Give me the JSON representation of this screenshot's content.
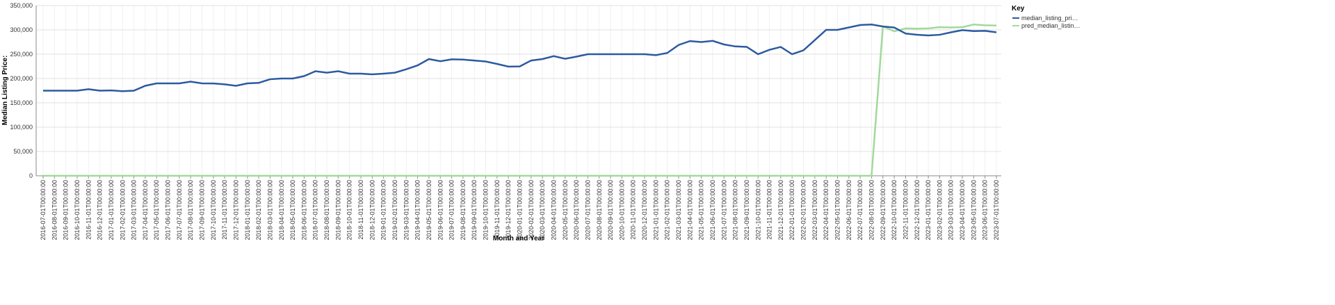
{
  "chart_data": {
    "type": "line",
    "x_label": "Month and Year",
    "y_label": "Median Listing Price:",
    "legend_title": "Key",
    "legend_position": "right",
    "grid": true,
    "categories": [
      "2016-07-01T00:00:00",
      "2016-08-01T00:00:00",
      "2016-09-01T00:00:00",
      "2016-10-01T00:00:00",
      "2016-11-01T00:00:00",
      "2016-12-01T00:00:00",
      "2017-01-01T00:00:00",
      "2017-02-01T00:00:00",
      "2017-03-01T00:00:00",
      "2017-04-01T00:00:00",
      "2017-05-01T00:00:00",
      "2017-06-01T00:00:00",
      "2017-07-01T00:00:00",
      "2017-08-01T00:00:00",
      "2017-09-01T00:00:00",
      "2017-10-01T00:00:00",
      "2017-11-01T00:00:00",
      "2017-12-01T00:00:00",
      "2018-01-01T00:00:00",
      "2018-02-01T00:00:00",
      "2018-03-01T00:00:00",
      "2018-04-01T00:00:00",
      "2018-05-01T00:00:00",
      "2018-06-01T00:00:00",
      "2018-07-01T00:00:00",
      "2018-08-01T00:00:00",
      "2018-09-01T00:00:00",
      "2018-10-01T00:00:00",
      "2018-11-01T00:00:00",
      "2018-12-01T00:00:00",
      "2019-01-01T00:00:00",
      "2019-02-01T00:00:00",
      "2019-03-01T00:00:00",
      "2019-04-01T00:00:00",
      "2019-05-01T00:00:00",
      "2019-06-01T00:00:00",
      "2019-07-01T00:00:00",
      "2019-08-01T00:00:00",
      "2019-09-01T00:00:00",
      "2019-10-01T00:00:00",
      "2019-11-01T00:00:00",
      "2019-12-01T00:00:00",
      "2020-01-01T00:00:00",
      "2020-02-01T00:00:00",
      "2020-03-01T00:00:00",
      "2020-04-01T00:00:00",
      "2020-05-01T00:00:00",
      "2020-06-01T00:00:00",
      "2020-07-01T00:00:00",
      "2020-08-01T00:00:00",
      "2020-09-01T00:00:00",
      "2020-10-01T00:00:00",
      "2020-11-01T00:00:00",
      "2020-12-01T00:00:00",
      "2021-01-01T00:00:00",
      "2021-02-01T00:00:00",
      "2021-03-01T00:00:00",
      "2021-04-01T00:00:00",
      "2021-05-01T00:00:00",
      "2021-06-01T00:00:00",
      "2021-07-01T00:00:00",
      "2021-08-01T00:00:00",
      "2021-09-01T00:00:00",
      "2021-10-01T00:00:00",
      "2021-11-01T00:00:00",
      "2021-12-01T00:00:00",
      "2022-01-01T00:00:00",
      "2022-02-01T00:00:00",
      "2022-03-01T00:00:00",
      "2022-04-01T00:00:00",
      "2022-05-01T00:00:00",
      "2022-06-01T00:00:00",
      "2022-07-01T00:00:00",
      "2022-08-01T00:00:00",
      "2022-09-01T00:00:00",
      "2022-10-01T00:00:00",
      "2022-11-01T00:00:00",
      "2022-12-01T00:00:00",
      "2023-01-01T00:00:00",
      "2023-02-01T00:00:00",
      "2023-03-01T00:00:00",
      "2023-04-01T00:00:00",
      "2023-05-01T00:00:00",
      "2023-06-01T00:00:00",
      "2023-07-01T00:00:00"
    ],
    "series": [
      {
        "name": "median_listing_pri…",
        "color": "#2c5aa0",
        "values": [
          175000,
          175000,
          175000,
          175000,
          178000,
          175000,
          175500,
          174000,
          175000,
          185000,
          190000,
          190000,
          190000,
          193500,
          190000,
          189900,
          188000,
          185000,
          190000,
          191000,
          198500,
          200000,
          200000,
          205000,
          215000,
          212000,
          215000,
          210000,
          210000,
          208500,
          210000,
          212000,
          219000,
          227000,
          240000,
          235500,
          239500,
          239000,
          237000,
          235000,
          230000,
          224500,
          224900,
          237000,
          240000,
          246000,
          240500,
          245000,
          250000,
          250000,
          250000,
          250000,
          250000,
          250000,
          248000,
          252500,
          269000,
          277000,
          275000,
          277500,
          270000,
          266000,
          265000,
          250000,
          259000,
          264900,
          250000,
          258000,
          279000,
          300000,
          300000,
          305000,
          310000,
          311000,
          307000,
          304900,
          292500,
          290000,
          288500,
          289900,
          295000,
          299500,
          297500,
          298000,
          295000
        ]
      },
      {
        "name": "pred_median_listin…",
        "color": "#a1d99b",
        "values": [
          0,
          0,
          0,
          0,
          0,
          0,
          0,
          0,
          0,
          0,
          0,
          0,
          0,
          0,
          0,
          0,
          0,
          0,
          0,
          0,
          0,
          0,
          0,
          0,
          0,
          0,
          0,
          0,
          0,
          0,
          0,
          0,
          0,
          0,
          0,
          0,
          0,
          0,
          0,
          0,
          0,
          0,
          0,
          0,
          0,
          0,
          0,
          0,
          0,
          0,
          0,
          0,
          0,
          0,
          0,
          0,
          0,
          0,
          0,
          0,
          0,
          0,
          0,
          0,
          0,
          0,
          0,
          0,
          0,
          0,
          0,
          0,
          0,
          0,
          307000,
          297000,
          303000,
          302500,
          303000,
          305500,
          305000,
          305500,
          311000,
          309500,
          309000
        ]
      }
    ],
    "ylim": [
      0,
      350000
    ],
    "yticks": [
      {
        "value": 0,
        "label": "0"
      },
      {
        "value": 50000,
        "label": "50,000"
      },
      {
        "value": 100000,
        "label": "100,000"
      },
      {
        "value": 150000,
        "label": "150,000"
      },
      {
        "value": 200000,
        "label": "200,000"
      },
      {
        "value": 250000,
        "label": "250,000"
      },
      {
        "value": 300000,
        "label": "300,000"
      },
      {
        "value": 350000,
        "label": "350,000"
      }
    ]
  }
}
